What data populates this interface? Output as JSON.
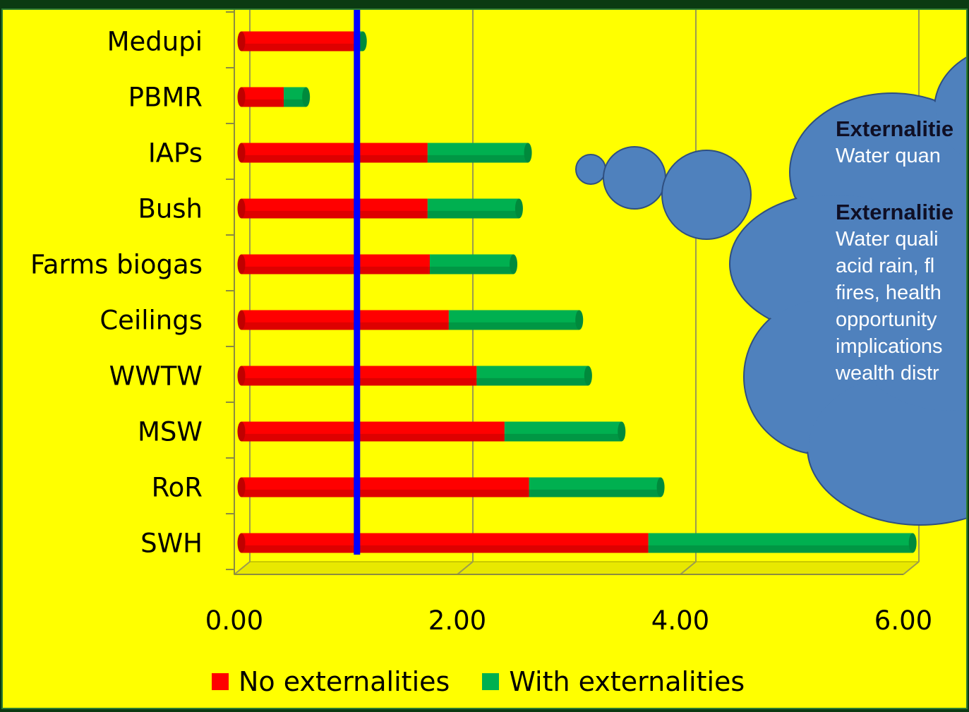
{
  "chart_data": {
    "type": "bar",
    "orientation": "horizontal",
    "stacked": true,
    "categories": [
      "Medupi",
      "PBMR",
      "IAPs",
      "Bush",
      "Farms biogas",
      "Ceilings",
      "WWTW",
      "MSW",
      "RoR",
      "SWH"
    ],
    "series": [
      {
        "name": "No externalities",
        "values": [
          1.06,
          0.38,
          1.67,
          1.67,
          1.69,
          1.86,
          2.11,
          2.36,
          2.58,
          3.65
        ],
        "color": "#ff0000"
      },
      {
        "name": "With externalities",
        "values": [
          0.03,
          0.2,
          0.9,
          0.82,
          0.75,
          1.17,
          1.0,
          1.05,
          1.18,
          2.37
        ],
        "color": "#00b050"
      }
    ],
    "x_ticks": [
      "0.00",
      "2.00",
      "4.00",
      "6.00"
    ],
    "xlim": [
      0,
      6.5
    ],
    "reference_line": {
      "value": 1.1,
      "color": "#0000ff"
    },
    "grid": true,
    "legend_position": "bottom"
  },
  "callout": {
    "heading1": "Externalitie",
    "line1": "Water quan",
    "heading2": "Externalitie",
    "lines2": [
      "Water quali",
      "acid rain, fl",
      "fires, health",
      "opportunity",
      "implications",
      "wealth distr"
    ]
  }
}
